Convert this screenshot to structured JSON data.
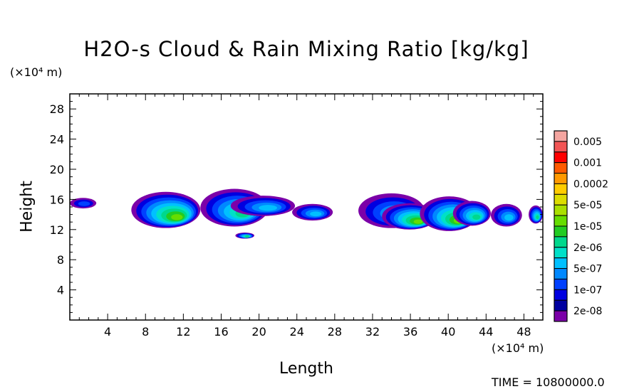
{
  "chart_data": {
    "type": "heatmap",
    "title": "H2O-s Cloud & Rain Mixing Ratio [kg/kg]",
    "xlabel": "Length",
    "ylabel": "Height",
    "x_unit": "(×10⁴ m)",
    "y_unit": "(×10⁴ m)",
    "xlim": [
      0,
      50
    ],
    "ylim": [
      0,
      30
    ],
    "x_ticks": [
      4,
      8,
      12,
      16,
      20,
      24,
      28,
      32,
      36,
      40,
      44,
      48
    ],
    "y_ticks": [
      4,
      8,
      12,
      16,
      20,
      24,
      28
    ],
    "legend": {
      "placement": "right",
      "levels": [
        {
          "label": "0.005",
          "color": "#f4a5a0"
        },
        {
          "label": "",
          "color": "#f25555"
        },
        {
          "label": "0.001",
          "color": "#ff0000"
        },
        {
          "label": "",
          "color": "#ff5a00"
        },
        {
          "label": "0.0002",
          "color": "#ff9900"
        },
        {
          "label": "",
          "color": "#ffcc00"
        },
        {
          "label": "5e-05",
          "color": "#dddd00"
        },
        {
          "label": "",
          "color": "#aae000"
        },
        {
          "label": "1e-05",
          "color": "#66dd00"
        },
        {
          "label": "",
          "color": "#22cc22"
        },
        {
          "label": "2e-06",
          "color": "#00d88c"
        },
        {
          "label": "",
          "color": "#00e0c8"
        },
        {
          "label": "5e-07",
          "color": "#00c0ff"
        },
        {
          "label": "",
          "color": "#0088ff"
        },
        {
          "label": "1e-07",
          "color": "#0040ff"
        },
        {
          "label": "",
          "color": "#0000e0"
        },
        {
          "label": "2e-08",
          "color": "#0000a0"
        },
        {
          "label": "",
          "color": "#7b00a8"
        }
      ]
    },
    "cloud_cells": [
      {
        "x": [
          0.0,
          2.8
        ],
        "y": [
          14.8,
          16.2
        ],
        "peak": "1e-07"
      },
      {
        "x": [
          6.5,
          13.8
        ],
        "y": [
          12.2,
          17.0
        ],
        "peak": "1e-05"
      },
      {
        "x": [
          13.8,
          21.0
        ],
        "y": [
          12.4,
          17.4
        ],
        "peak": "2e-06"
      },
      {
        "x": [
          17.0,
          23.8
        ],
        "y": [
          13.8,
          16.5
        ],
        "peak": "5e-07"
      },
      {
        "x": [
          17.5,
          19.5
        ],
        "y": [
          10.8,
          11.6
        ],
        "peak": "2e-06"
      },
      {
        "x": [
          23.5,
          27.8
        ],
        "y": [
          13.2,
          15.4
        ],
        "peak": "5e-07"
      },
      {
        "x": [
          30.5,
          37.5
        ],
        "y": [
          12.2,
          16.8
        ],
        "peak": "5e-07"
      },
      {
        "x": [
          33.0,
          38.8
        ],
        "y": [
          12.0,
          15.5
        ],
        "peak": "1e-05"
      },
      {
        "x": [
          37.0,
          43.2
        ],
        "y": [
          11.8,
          16.4
        ],
        "peak": "1e-05"
      },
      {
        "x": [
          40.5,
          44.5
        ],
        "y": [
          12.5,
          15.8
        ],
        "peak": "2e-06"
      },
      {
        "x": [
          44.5,
          47.8
        ],
        "y": [
          12.4,
          15.4
        ],
        "peak": "5e-07"
      },
      {
        "x": [
          48.5,
          50.0
        ],
        "y": [
          12.8,
          15.2
        ],
        "peak": "2e-06"
      }
    ],
    "time_label": "TIME =  10800000.0",
    "grid": false
  }
}
